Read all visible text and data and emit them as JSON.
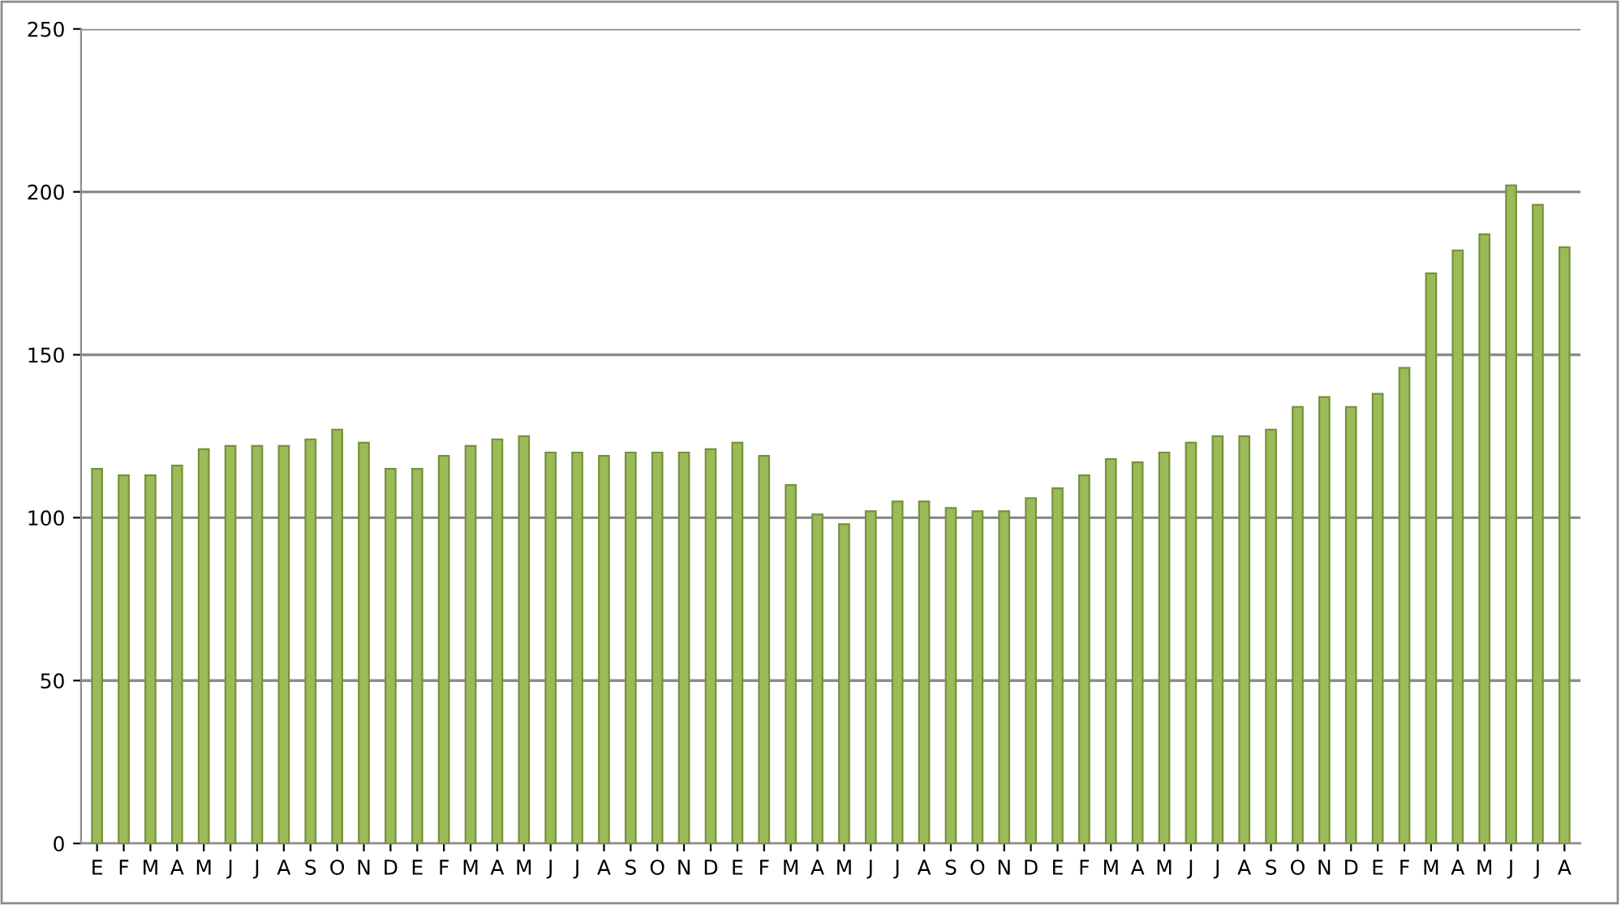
{
  "chart_data": {
    "type": "bar",
    "categories": [
      "E",
      "F",
      "M",
      "A",
      "M",
      "J",
      "J",
      "A",
      "S",
      "O",
      "N",
      "D",
      "E",
      "F",
      "M",
      "A",
      "M",
      "J",
      "J",
      "A",
      "S",
      "O",
      "N",
      "D",
      "E",
      "F",
      "M",
      "A",
      "M",
      "J",
      "J",
      "A",
      "S",
      "O",
      "N",
      "D",
      "E",
      "F",
      "M",
      "A",
      "M",
      "J",
      "J",
      "A",
      "S",
      "O",
      "N",
      "D",
      "E",
      "F",
      "M",
      "A",
      "M",
      "J",
      "J",
      "A"
    ],
    "values": [
      115,
      113,
      113,
      116,
      121,
      122,
      122,
      122,
      124,
      127,
      123,
      115,
      115,
      119,
      122,
      124,
      125,
      120,
      120,
      119,
      120,
      120,
      120,
      121,
      123,
      119,
      110,
      101,
      98,
      102,
      105,
      105,
      103,
      102,
      102,
      106,
      109,
      113,
      118,
      117,
      120,
      123,
      125,
      125,
      127,
      134,
      137,
      134,
      138,
      146,
      175,
      182,
      187,
      202,
      196,
      183
    ],
    "color": "#9bbb59",
    "ylim": [
      0,
      250
    ],
    "yticks": [
      0,
      50,
      100,
      150,
      200,
      250
    ],
    "grid": "y",
    "legend": false
  }
}
